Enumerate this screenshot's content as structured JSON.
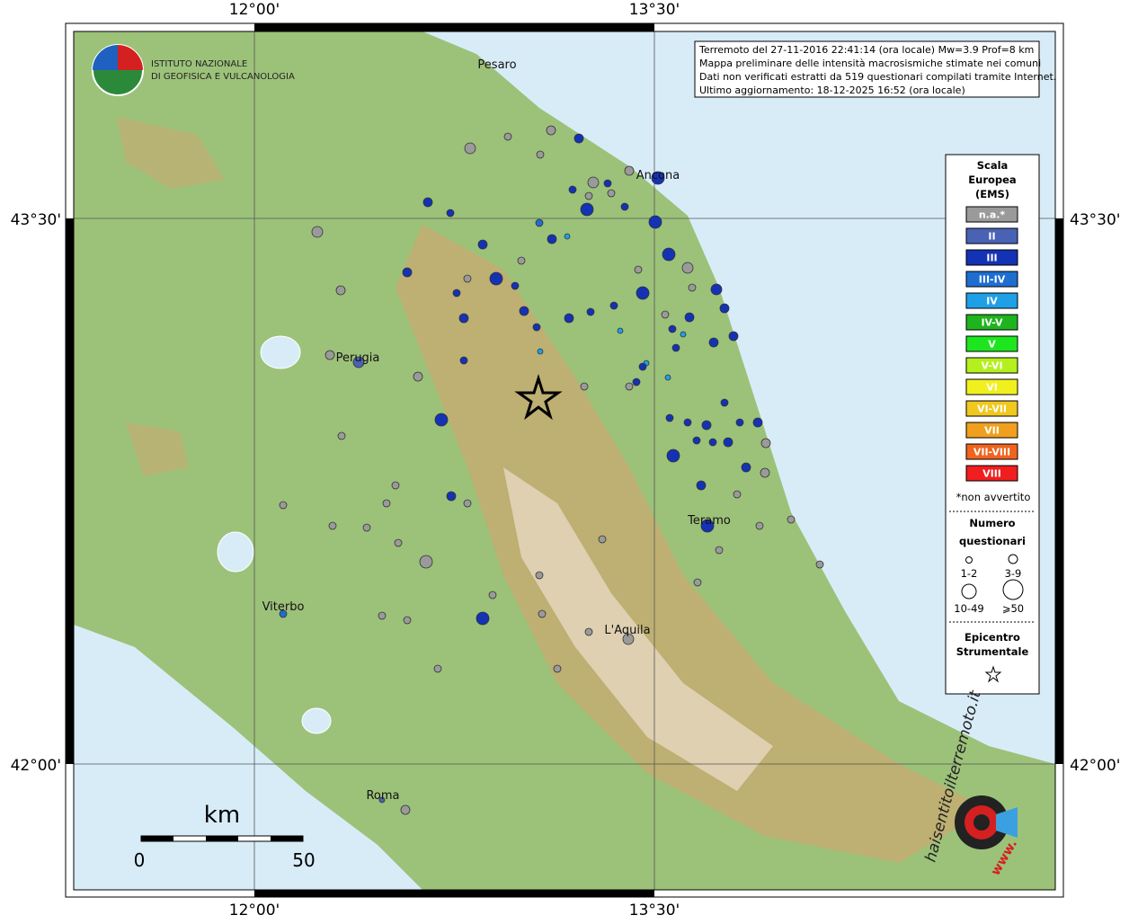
{
  "graticule": {
    "top": [
      "12°00'",
      "13°30'"
    ],
    "bottom": [
      "12°00'",
      "13°30'"
    ],
    "left": [
      "43°30'",
      "42°00'"
    ],
    "right": [
      "43°30'",
      "42°00'"
    ]
  },
  "logo": {
    "line1": "ISTITUTO NAZIONALE",
    "line2": "DI GEOFISICA E VULCANOLOGIA"
  },
  "info": [
    "Terremoto del 27-11-2016 22:41:14 (ora locale) Mw=3.9 Prof=8 km",
    "Mappa preliminare delle intensità macrosismiche stimate nei comuni",
    "Dati non verificati estratti da 519 questionari compilati tramite Internet.",
    "Ultimo aggiornamento: 18-12-2025 16:52 (ora locale)"
  ],
  "legend": {
    "title": [
      "Scala",
      "Europea",
      "(EMS)"
    ],
    "classes": [
      {
        "label": "n.a.*",
        "color": "#9a9a9a"
      },
      {
        "label": "II",
        "color": "#4a62b4"
      },
      {
        "label": "III",
        "color": "#1432b4"
      },
      {
        "label": "III-IV",
        "color": "#1e6ed2"
      },
      {
        "label": "IV",
        "color": "#1ea0e6"
      },
      {
        "label": "IV-V",
        "color": "#1eb41e"
      },
      {
        "label": "V",
        "color": "#1ee61e"
      },
      {
        "label": "V-VI",
        "color": "#b4f01e"
      },
      {
        "label": "VI",
        "color": "#f0f01e"
      },
      {
        "label": "VI-VII",
        "color": "#f0c81e"
      },
      {
        "label": "VII",
        "color": "#f0a01e"
      },
      {
        "label": "VII-VIII",
        "color": "#f0641e"
      },
      {
        "label": "VIII",
        "color": "#f01e1e"
      }
    ],
    "note": "*non avvertito",
    "count_title": [
      "Numero",
      "questionari"
    ],
    "sizes": [
      "1-2",
      "3-9",
      "10-49",
      "⩾50"
    ],
    "epicentre": [
      "Epicentro",
      "Strumentale"
    ]
  },
  "cities": [
    "Pesaro",
    "Ancona",
    "Perugia",
    "Teramo",
    "Viterbo",
    "L'Aquila",
    "Roma"
  ],
  "scale": {
    "unit": "km",
    "start": "0",
    "end": "50"
  },
  "badge": {
    "site": "haisentitoilterremoto.it",
    "www": "www."
  }
}
